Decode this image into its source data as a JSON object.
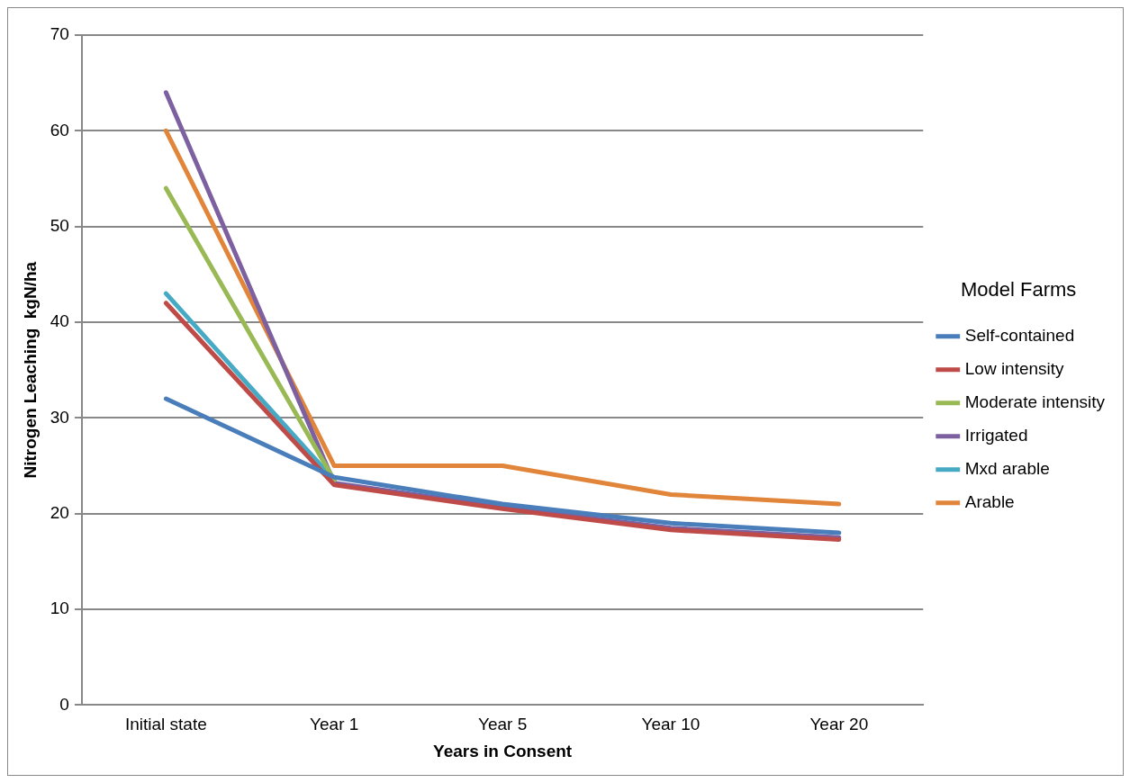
{
  "chart_data": {
    "type": "line",
    "xlabel": "Years in Consent",
    "ylabel": "Nitrogen Leaching  kgN/ha",
    "legend_title": "Model Farms",
    "categories": [
      "Initial state",
      "Year 1",
      "Year 5",
      "Year 10",
      "Year 20"
    ],
    "series": [
      {
        "name": "Self-contained",
        "color": "#4a7ebb",
        "values": [
          32,
          23.8,
          21,
          19,
          18
        ]
      },
      {
        "name": "Low intensity",
        "color": "#be4b48",
        "values": [
          42,
          23,
          20.5,
          18.3,
          17.3
        ]
      },
      {
        "name": "Moderate intensity",
        "color": "#98b954",
        "values": [
          54,
          23.5,
          null,
          null,
          null
        ]
      },
      {
        "name": "Irrigated",
        "color": "#7d60a0",
        "values": [
          64,
          23.2,
          20.7,
          18.5,
          17.5
        ]
      },
      {
        "name": "Mxd arable",
        "color": "#46aac5",
        "values": [
          43,
          23.5,
          null,
          null,
          null
        ]
      },
      {
        "name": "Arable",
        "color": "#e0853a",
        "values": [
          60,
          25,
          25,
          22,
          21
        ]
      }
    ],
    "ylim": [
      0,
      70
    ],
    "yticks": [
      0,
      10,
      20,
      30,
      40,
      50,
      60,
      70
    ],
    "grid": "y",
    "legend": "right",
    "marker": "none",
    "line_style": "solid"
  }
}
